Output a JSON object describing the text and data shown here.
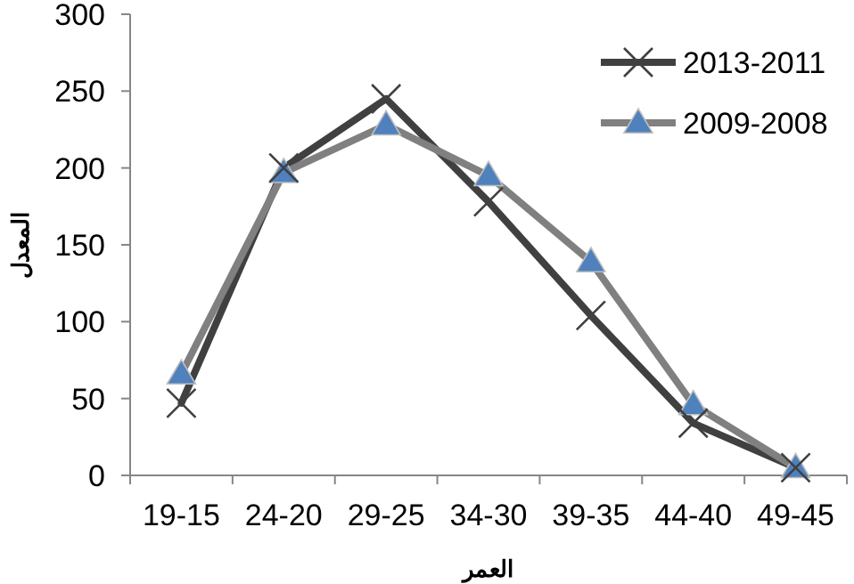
{
  "chart_data": {
    "type": "line",
    "xlabel": "العمر",
    "ylabel": "المعدل",
    "categories": [
      "19-15",
      "24-20",
      "29-25",
      "34-30",
      "39-35",
      "44-40",
      "49-45"
    ],
    "series": [
      {
        "name": "2013-2011",
        "color": "#404040",
        "marker": "cross",
        "values": [
          47,
          200,
          245,
          178,
          104,
          34,
          5
        ]
      },
      {
        "name": "2009-2008",
        "color": "#808080",
        "marker": "triangle",
        "values": [
          66,
          197,
          228,
          195,
          139,
          46,
          5
        ]
      }
    ],
    "ylim": [
      0,
      300
    ],
    "yticks": [
      0,
      50,
      100,
      150,
      200,
      250,
      300
    ],
    "grid": false,
    "legend": "top right"
  }
}
